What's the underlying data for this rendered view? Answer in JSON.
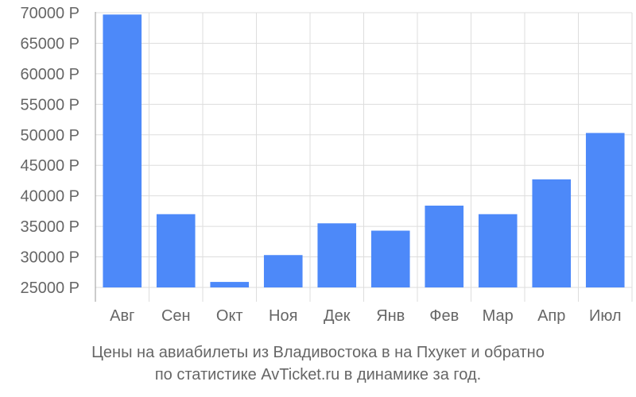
{
  "chart_data": {
    "type": "bar",
    "categories": [
      "Авг",
      "Сен",
      "Окт",
      "Ноя",
      "Дек",
      "Янв",
      "Фев",
      "Мар",
      "Апр",
      "Июл"
    ],
    "values": [
      69700,
      37000,
      25900,
      30300,
      35500,
      34300,
      38400,
      37000,
      42700,
      50300
    ],
    "ylim": [
      25000,
      70000
    ],
    "y_ticks": [
      25000,
      30000,
      35000,
      40000,
      45000,
      50000,
      55000,
      60000,
      65000,
      70000
    ],
    "y_tick_labels": [
      "25000 Р",
      "30000 Р",
      "35000 Р",
      "40000 Р",
      "45000 Р",
      "50000 Р",
      "55000 Р",
      "60000 Р",
      "65000 Р",
      "70000 Р"
    ],
    "bar_color": "#4d89f9",
    "grid": true
  },
  "caption": {
    "line1": "Цены на авиабилеты из Владивостока в на Пхукет и обратно",
    "line2": "по статистике AvTicket.ru в динамике за год."
  }
}
